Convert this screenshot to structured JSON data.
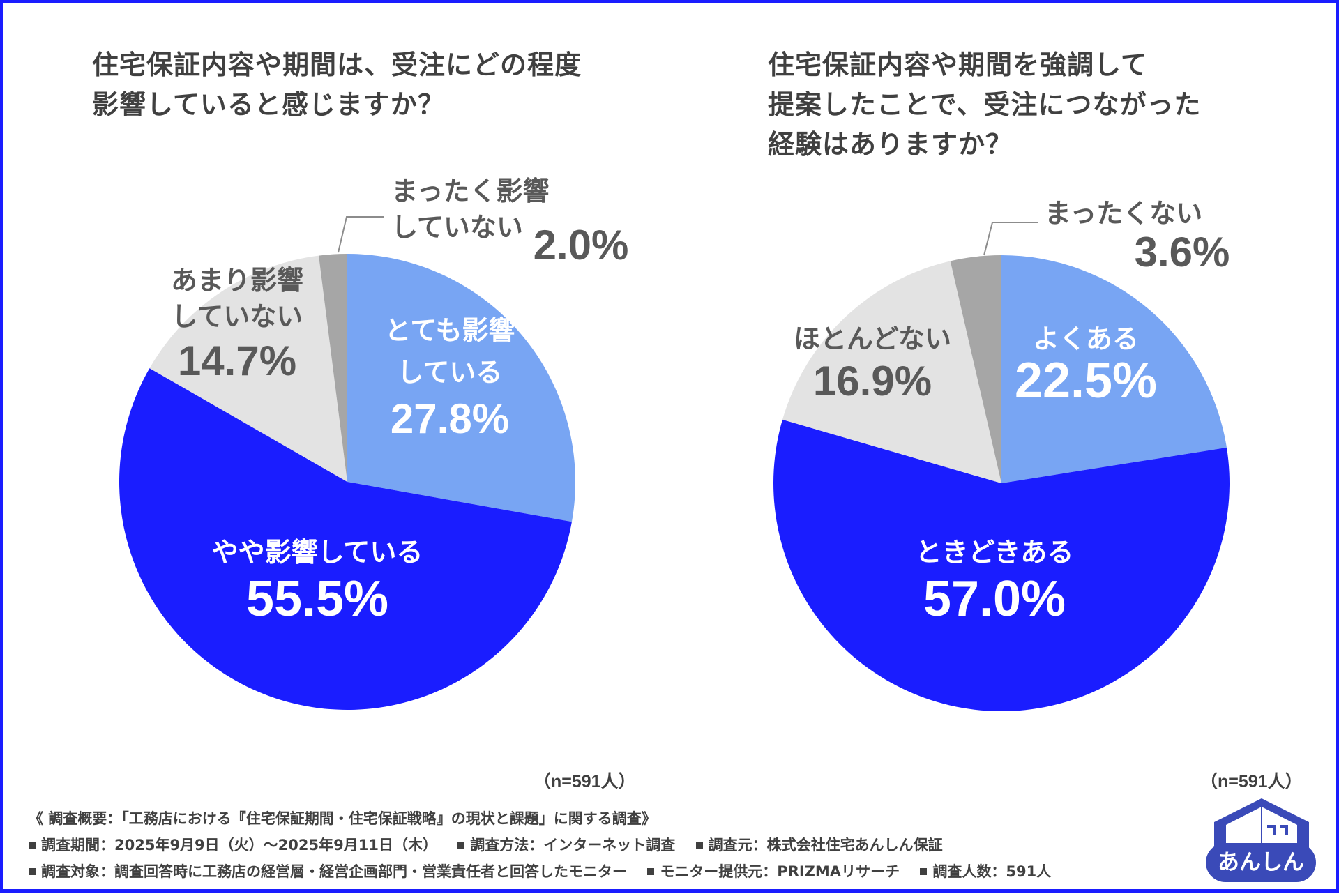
{
  "colors": {
    "frame": "#1a1dff",
    "dark_blue": "#1a1dff",
    "light_blue": "#78a5f3",
    "light_gray": "#e3e3e3",
    "mid_gray": "#a6a6a6",
    "text_dark": "#404040",
    "text_mid": "#595959"
  },
  "chart_data": [
    {
      "type": "pie",
      "title": [
        "住宅保証内容や期間は、受注にどの程度",
        "影響していると感じますか？"
      ],
      "sample_note": "（n=591人）",
      "slices": [
        {
          "name": "とても影響している",
          "label_lines": [
            "とても影響",
            "している"
          ],
          "value": 27.8,
          "value_text": "27.8%",
          "color": "#78a5f3"
        },
        {
          "name": "やや影響している",
          "label_lines": [
            "やや影響している"
          ],
          "value": 55.5,
          "value_text": "55.5%",
          "color": "#1a1dff"
        },
        {
          "name": "あまり影響していない",
          "label_lines": [
            "あまり影響",
            "していない"
          ],
          "value": 14.7,
          "value_text": "14.7%",
          "color": "#e3e3e3"
        },
        {
          "name": "まったく影響していない",
          "label_lines": [
            "まったく影響",
            "していない"
          ],
          "value": 2.0,
          "value_text": "2.0%",
          "color": "#a6a6a6"
        }
      ]
    },
    {
      "type": "pie",
      "title": [
        "住宅保証内容や期間を強調して",
        "提案したことで、受注につながった",
        "経験はありますか？"
      ],
      "sample_note": "（n=591人）",
      "slices": [
        {
          "name": "よくある",
          "label_lines": [
            "よくある"
          ],
          "value": 22.5,
          "value_text": "22.5%",
          "color": "#78a5f3"
        },
        {
          "name": "ときどきある",
          "label_lines": [
            "ときどきある"
          ],
          "value": 57.0,
          "value_text": "57.0%",
          "color": "#1a1dff"
        },
        {
          "name": "ほとんどない",
          "label_lines": [
            "ほとんどない"
          ],
          "value": 16.9,
          "value_text": "16.9%",
          "color": "#e3e3e3"
        },
        {
          "name": "まったくない",
          "label_lines": [
            "まったくない"
          ],
          "value": 3.6,
          "value_text": "3.6%",
          "color": "#a6a6a6"
        }
      ]
    }
  ],
  "footer": {
    "overview": "《 調査概要：「工務店における『住宅保証期間・住宅保証戦略』の現状と課題」に関する調査》",
    "row1": [
      "調査期間：2025年9月9日（火）～2025年9月11日（木）",
      "調査方法：インターネット調査",
      "調査元：株式会社住宅あんしん保証"
    ],
    "row2": [
      "調査対象：調査回答時に工務店の経営層・経営企画部門・営業責任者と回答したモニター",
      "モニター提供元：PRIZMAリサーチ",
      "調査人数：591人"
    ]
  },
  "logo": {
    "text": "あんしん",
    "icon": "house-logo-icon"
  }
}
